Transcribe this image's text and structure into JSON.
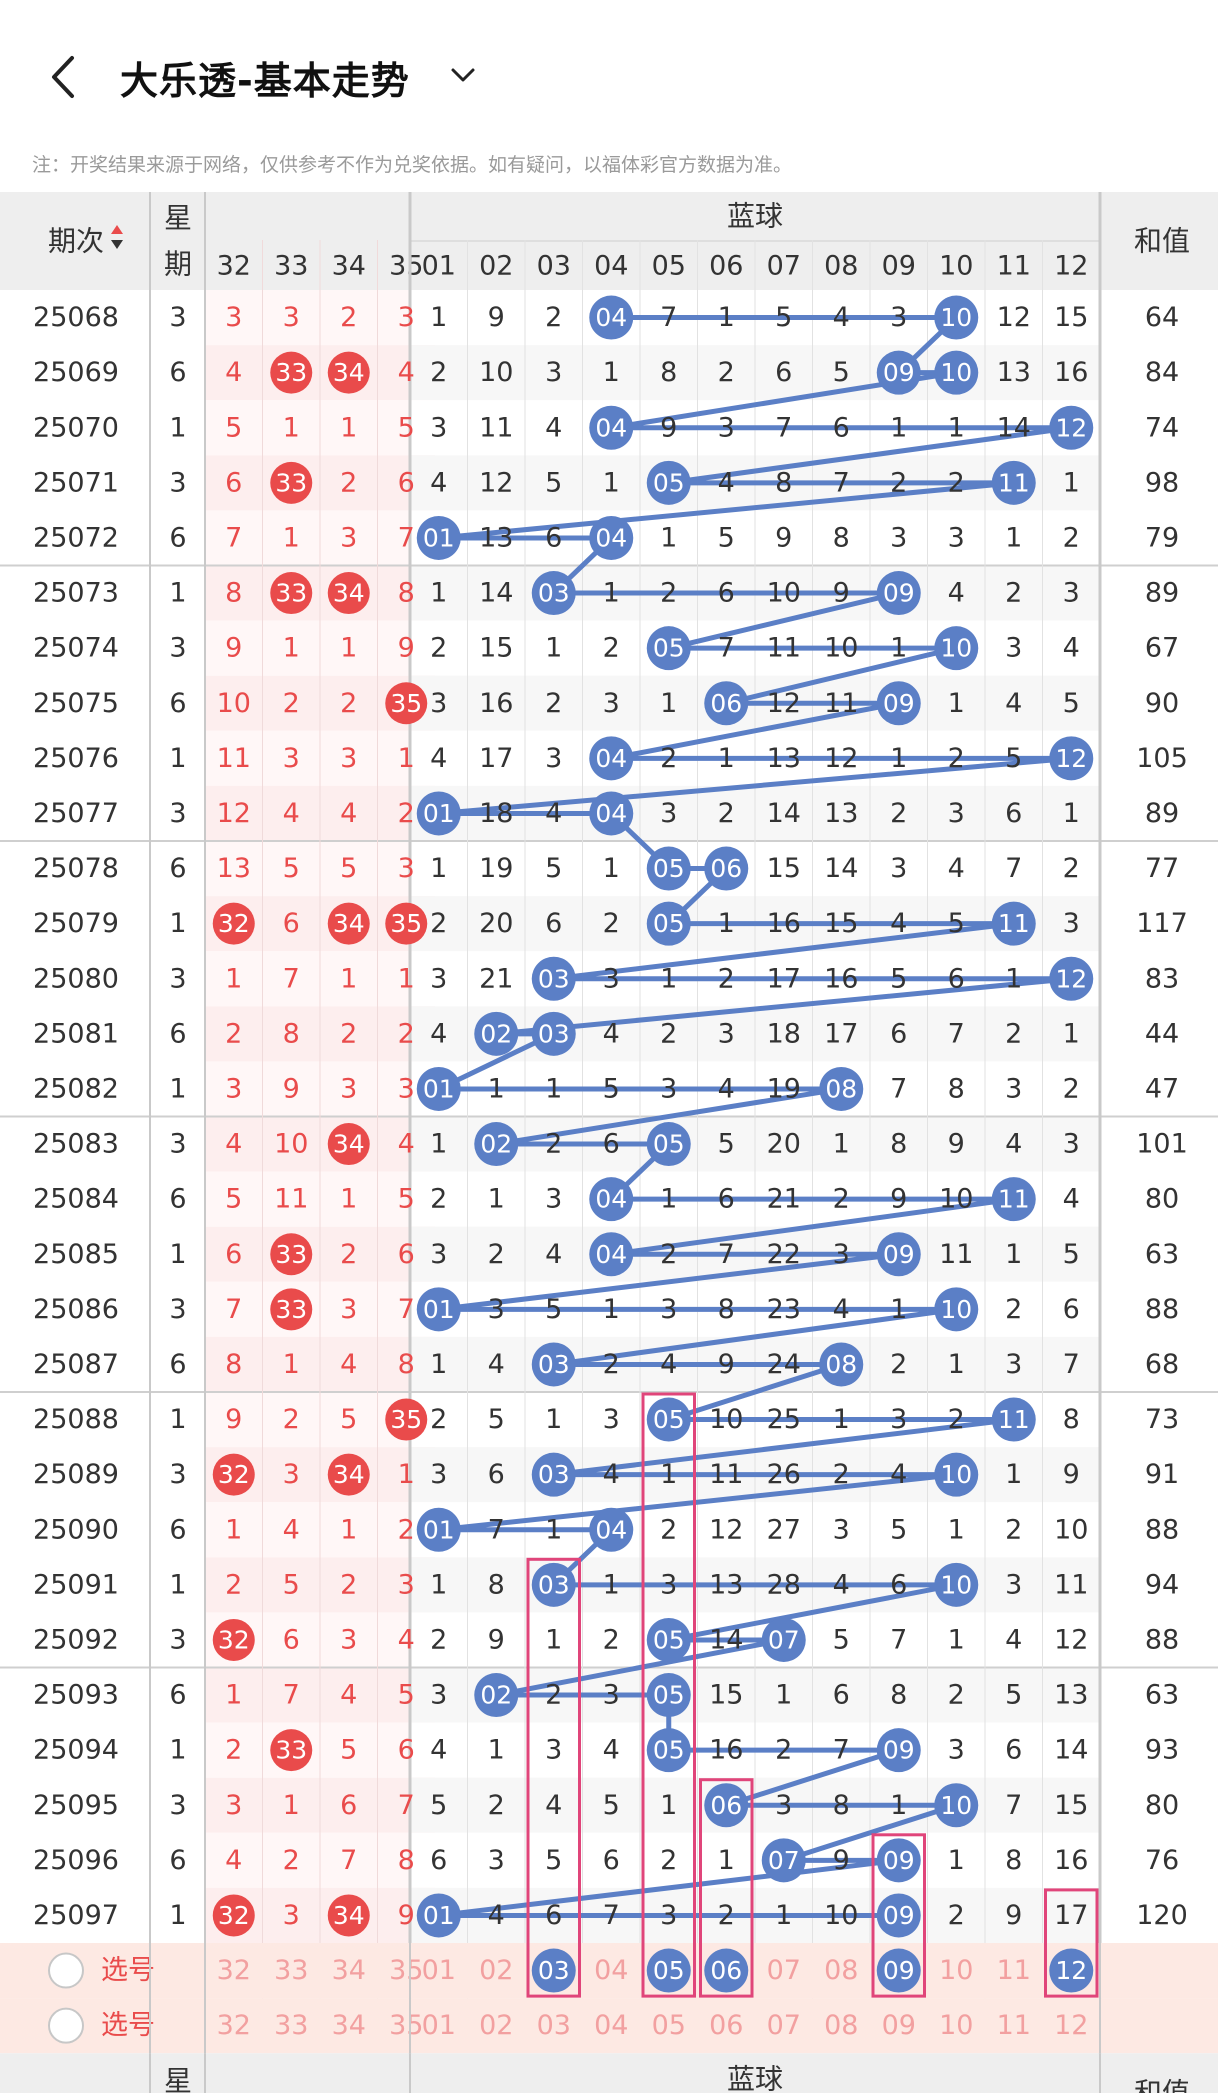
{
  "header": {
    "title": "大乐透-基本走势",
    "back_icon": "chevron-left-icon",
    "dropdown_icon": "chevron-down-icon"
  },
  "notice": "注：开奖结果来源于网络，仅供参考不作为兑奖依据。如有疑问，以福体彩官方数据为准。",
  "table": {
    "col_issue": "期次",
    "col_week_top": "星",
    "col_week_bottom": "期",
    "blue_group": "蓝球",
    "col_sum": "和值",
    "red_cols": [
      "32",
      "33",
      "34",
      "35"
    ],
    "blue_cols": [
      "01",
      "02",
      "03",
      "04",
      "05",
      "06",
      "07",
      "08",
      "09",
      "10",
      "11",
      "12"
    ],
    "rows": [
      {
        "issue": "25068",
        "week": "3",
        "red": [
          "3",
          "3",
          "2",
          "3"
        ],
        "red_hit": [],
        "blue": [
          "1",
          "9",
          "2",
          "04",
          "7",
          "1",
          "5",
          "4",
          "3",
          "10",
          "12",
          "15"
        ],
        "blue_hit": [
          3,
          9
        ],
        "sum": "64"
      },
      {
        "issue": "25069",
        "week": "6",
        "red": [
          "4",
          "33",
          "34",
          "4"
        ],
        "red_hit": [
          1,
          2
        ],
        "blue": [
          "2",
          "10",
          "3",
          "1",
          "8",
          "2",
          "6",
          "5",
          "09",
          "10",
          "13",
          "16"
        ],
        "blue_hit": [
          8,
          9
        ],
        "sum": "84"
      },
      {
        "issue": "25070",
        "week": "1",
        "red": [
          "5",
          "1",
          "1",
          "5"
        ],
        "red_hit": [],
        "blue": [
          "3",
          "11",
          "4",
          "04",
          "9",
          "3",
          "7",
          "6",
          "1",
          "1",
          "14",
          "12"
        ],
        "blue_hit": [
          3,
          11
        ],
        "sum": "74"
      },
      {
        "issue": "25071",
        "week": "3",
        "red": [
          "6",
          "33",
          "2",
          "6"
        ],
        "red_hit": [
          1
        ],
        "blue": [
          "4",
          "12",
          "5",
          "1",
          "05",
          "4",
          "8",
          "7",
          "2",
          "2",
          "11",
          "1"
        ],
        "blue_hit": [
          4,
          10
        ],
        "sum": "98"
      },
      {
        "issue": "25072",
        "week": "6",
        "red": [
          "7",
          "1",
          "3",
          "7"
        ],
        "red_hit": [],
        "blue": [
          "01",
          "13",
          "6",
          "04",
          "1",
          "5",
          "9",
          "8",
          "3",
          "3",
          "1",
          "2"
        ],
        "blue_hit": [
          0,
          3
        ],
        "sum": "79"
      },
      {
        "issue": "25073",
        "week": "1",
        "red": [
          "8",
          "33",
          "34",
          "8"
        ],
        "red_hit": [
          1,
          2
        ],
        "blue": [
          "1",
          "14",
          "03",
          "1",
          "2",
          "6",
          "10",
          "9",
          "09",
          "4",
          "2",
          "3"
        ],
        "blue_hit": [
          2,
          8
        ],
        "sum": "89"
      },
      {
        "issue": "25074",
        "week": "3",
        "red": [
          "9",
          "1",
          "1",
          "9"
        ],
        "red_hit": [],
        "blue": [
          "2",
          "15",
          "1",
          "2",
          "05",
          "7",
          "11",
          "10",
          "1",
          "10",
          "3",
          "4"
        ],
        "blue_hit": [
          4,
          9
        ],
        "sum": "67"
      },
      {
        "issue": "25075",
        "week": "6",
        "red": [
          "10",
          "2",
          "2",
          "35"
        ],
        "red_hit": [
          3
        ],
        "blue": [
          "3",
          "16",
          "2",
          "3",
          "1",
          "06",
          "12",
          "11",
          "09",
          "1",
          "4",
          "5"
        ],
        "blue_hit": [
          5,
          8
        ],
        "sum": "90"
      },
      {
        "issue": "25076",
        "week": "1",
        "red": [
          "11",
          "3",
          "3",
          "1"
        ],
        "red_hit": [],
        "blue": [
          "4",
          "17",
          "3",
          "04",
          "2",
          "1",
          "13",
          "12",
          "1",
          "2",
          "5",
          "12"
        ],
        "blue_hit": [
          3,
          11
        ],
        "sum": "105"
      },
      {
        "issue": "25077",
        "week": "3",
        "red": [
          "12",
          "4",
          "4",
          "2"
        ],
        "red_hit": [],
        "blue": [
          "01",
          "18",
          "4",
          "04",
          "3",
          "2",
          "14",
          "13",
          "2",
          "3",
          "6",
          "1"
        ],
        "blue_hit": [
          0,
          3
        ],
        "sum": "89"
      },
      {
        "issue": "25078",
        "week": "6",
        "red": [
          "13",
          "5",
          "5",
          "3"
        ],
        "red_hit": [],
        "blue": [
          "1",
          "19",
          "5",
          "1",
          "05",
          "06",
          "15",
          "14",
          "3",
          "4",
          "7",
          "2"
        ],
        "blue_hit": [
          4,
          5
        ],
        "sum": "77"
      },
      {
        "issue": "25079",
        "week": "1",
        "red": [
          "32",
          "6",
          "34",
          "35"
        ],
        "red_hit": [
          0,
          2,
          3
        ],
        "blue": [
          "2",
          "20",
          "6",
          "2",
          "05",
          "1",
          "16",
          "15",
          "4",
          "5",
          "11",
          "3"
        ],
        "blue_hit": [
          4,
          10
        ],
        "sum": "117"
      },
      {
        "issue": "25080",
        "week": "3",
        "red": [
          "1",
          "7",
          "1",
          "1"
        ],
        "red_hit": [],
        "blue": [
          "3",
          "21",
          "03",
          "3",
          "1",
          "2",
          "17",
          "16",
          "5",
          "6",
          "1",
          "12"
        ],
        "blue_hit": [
          2,
          11
        ],
        "sum": "83"
      },
      {
        "issue": "25081",
        "week": "6",
        "red": [
          "2",
          "8",
          "2",
          "2"
        ],
        "red_hit": [],
        "blue": [
          "4",
          "02",
          "03",
          "4",
          "2",
          "3",
          "18",
          "17",
          "6",
          "7",
          "2",
          "1"
        ],
        "blue_hit": [
          1,
          2
        ],
        "sum": "44"
      },
      {
        "issue": "25082",
        "week": "1",
        "red": [
          "3",
          "9",
          "3",
          "3"
        ],
        "red_hit": [],
        "blue": [
          "01",
          "1",
          "1",
          "5",
          "3",
          "4",
          "19",
          "08",
          "7",
          "8",
          "3",
          "2"
        ],
        "blue_hit": [
          0,
          7
        ],
        "sum": "47"
      },
      {
        "issue": "25083",
        "week": "3",
        "red": [
          "4",
          "10",
          "34",
          "4"
        ],
        "red_hit": [
          2
        ],
        "blue": [
          "1",
          "02",
          "2",
          "6",
          "05",
          "5",
          "20",
          "1",
          "8",
          "9",
          "4",
          "3"
        ],
        "blue_hit": [
          1,
          4
        ],
        "sum": "101"
      },
      {
        "issue": "25084",
        "week": "6",
        "red": [
          "5",
          "11",
          "1",
          "5"
        ],
        "red_hit": [],
        "blue": [
          "2",
          "1",
          "3",
          "04",
          "1",
          "6",
          "21",
          "2",
          "9",
          "10",
          "11",
          "4"
        ],
        "blue_hit": [
          3,
          10
        ],
        "sum": "80"
      },
      {
        "issue": "25085",
        "week": "1",
        "red": [
          "6",
          "33",
          "2",
          "6"
        ],
        "red_hit": [
          1
        ],
        "blue": [
          "3",
          "2",
          "4",
          "04",
          "2",
          "7",
          "22",
          "3",
          "09",
          "11",
          "1",
          "5"
        ],
        "blue_hit": [
          3,
          8
        ],
        "sum": "63"
      },
      {
        "issue": "25086",
        "week": "3",
        "red": [
          "7",
          "33",
          "3",
          "7"
        ],
        "red_hit": [
          1
        ],
        "blue": [
          "01",
          "3",
          "5",
          "1",
          "3",
          "8",
          "23",
          "4",
          "1",
          "10",
          "2",
          "6"
        ],
        "blue_hit": [
          0,
          9
        ],
        "sum": "88"
      },
      {
        "issue": "25087",
        "week": "6",
        "red": [
          "8",
          "1",
          "4",
          "8"
        ],
        "red_hit": [],
        "blue": [
          "1",
          "4",
          "03",
          "2",
          "4",
          "9",
          "24",
          "08",
          "2",
          "1",
          "3",
          "7"
        ],
        "blue_hit": [
          2,
          7
        ],
        "sum": "68"
      },
      {
        "issue": "25088",
        "week": "1",
        "red": [
          "9",
          "2",
          "5",
          "35"
        ],
        "red_hit": [
          3
        ],
        "blue": [
          "2",
          "5",
          "1",
          "3",
          "05",
          "10",
          "25",
          "1",
          "3",
          "2",
          "11",
          "8"
        ],
        "blue_hit": [
          4,
          10
        ],
        "sum": "73"
      },
      {
        "issue": "25089",
        "week": "3",
        "red": [
          "32",
          "3",
          "34",
          "1"
        ],
        "red_hit": [
          0,
          2
        ],
        "blue": [
          "3",
          "6",
          "03",
          "4",
          "1",
          "11",
          "26",
          "2",
          "4",
          "10",
          "1",
          "9"
        ],
        "blue_hit": [
          2,
          9
        ],
        "sum": "91"
      },
      {
        "issue": "25090",
        "week": "6",
        "red": [
          "1",
          "4",
          "1",
          "2"
        ],
        "red_hit": [],
        "blue": [
          "01",
          "7",
          "1",
          "04",
          "2",
          "12",
          "27",
          "3",
          "5",
          "1",
          "2",
          "10"
        ],
        "blue_hit": [
          0,
          3
        ],
        "sum": "88"
      },
      {
        "issue": "25091",
        "week": "1",
        "red": [
          "2",
          "5",
          "2",
          "3"
        ],
        "red_hit": [],
        "blue": [
          "1",
          "8",
          "03",
          "1",
          "3",
          "13",
          "28",
          "4",
          "6",
          "10",
          "3",
          "11"
        ],
        "blue_hit": [
          2,
          9
        ],
        "sum": "94"
      },
      {
        "issue": "25092",
        "week": "3",
        "red": [
          "32",
          "6",
          "3",
          "4"
        ],
        "red_hit": [
          0
        ],
        "blue": [
          "2",
          "9",
          "1",
          "2",
          "05",
          "14",
          "07",
          "5",
          "7",
          "1",
          "4",
          "12"
        ],
        "blue_hit": [
          4,
          6
        ],
        "sum": "88"
      },
      {
        "issue": "25093",
        "week": "6",
        "red": [
          "1",
          "7",
          "4",
          "5"
        ],
        "red_hit": [],
        "blue": [
          "3",
          "02",
          "2",
          "3",
          "05",
          "15",
          "1",
          "6",
          "8",
          "2",
          "5",
          "13"
        ],
        "blue_hit": [
          1,
          4
        ],
        "sum": "63"
      },
      {
        "issue": "25094",
        "week": "1",
        "red": [
          "2",
          "33",
          "5",
          "6"
        ],
        "red_hit": [
          1
        ],
        "blue": [
          "4",
          "1",
          "3",
          "4",
          "05",
          "16",
          "2",
          "7",
          "09",
          "3",
          "6",
          "14"
        ],
        "blue_hit": [
          4,
          8
        ],
        "sum": "93"
      },
      {
        "issue": "25095",
        "week": "3",
        "red": [
          "3",
          "1",
          "6",
          "7"
        ],
        "red_hit": [],
        "blue": [
          "5",
          "2",
          "4",
          "5",
          "1",
          "06",
          "3",
          "8",
          "1",
          "10",
          "7",
          "15"
        ],
        "blue_hit": [
          5,
          9
        ],
        "sum": "80"
      },
      {
        "issue": "25096",
        "week": "6",
        "red": [
          "4",
          "2",
          "7",
          "8"
        ],
        "red_hit": [],
        "blue": [
          "6",
          "3",
          "5",
          "6",
          "2",
          "1",
          "07",
          "9",
          "09",
          "1",
          "8",
          "16"
        ],
        "blue_hit": [
          6,
          8
        ],
        "sum": "76"
      },
      {
        "issue": "25097",
        "week": "1",
        "red": [
          "32",
          "3",
          "34",
          "9"
        ],
        "red_hit": [
          0,
          2
        ],
        "blue": [
          "01",
          "4",
          "6",
          "7",
          "3",
          "2",
          "1",
          "10",
          "09",
          "2",
          "9",
          "17"
        ],
        "blue_hit": [
          0,
          8
        ],
        "sum": "120"
      }
    ],
    "select_rows": [
      {
        "label": "选号",
        "picked_blue": [
          2,
          4,
          5,
          8,
          11
        ]
      },
      {
        "label": "选号",
        "picked_blue": []
      }
    ],
    "highlight_boxes": [
      {
        "col": 2,
        "from_row": 23,
        "to_row": 30
      },
      {
        "col": 4,
        "from_row": 20,
        "to_row": 30
      },
      {
        "col": 5,
        "from_row": 27,
        "to_row": 30
      },
      {
        "col": 8,
        "from_row": 28,
        "to_row": 30
      },
      {
        "col": 11,
        "from_row": 29,
        "to_row": 30
      }
    ]
  },
  "colors": {
    "blue_ball": "#5b7fc6",
    "red_ball": "#e94b4b",
    "highlight": "#e0457a",
    "header_bg": "#eeeeee",
    "red_zone_light": "#fdeeee",
    "select_bg": "#fde9e3"
  }
}
